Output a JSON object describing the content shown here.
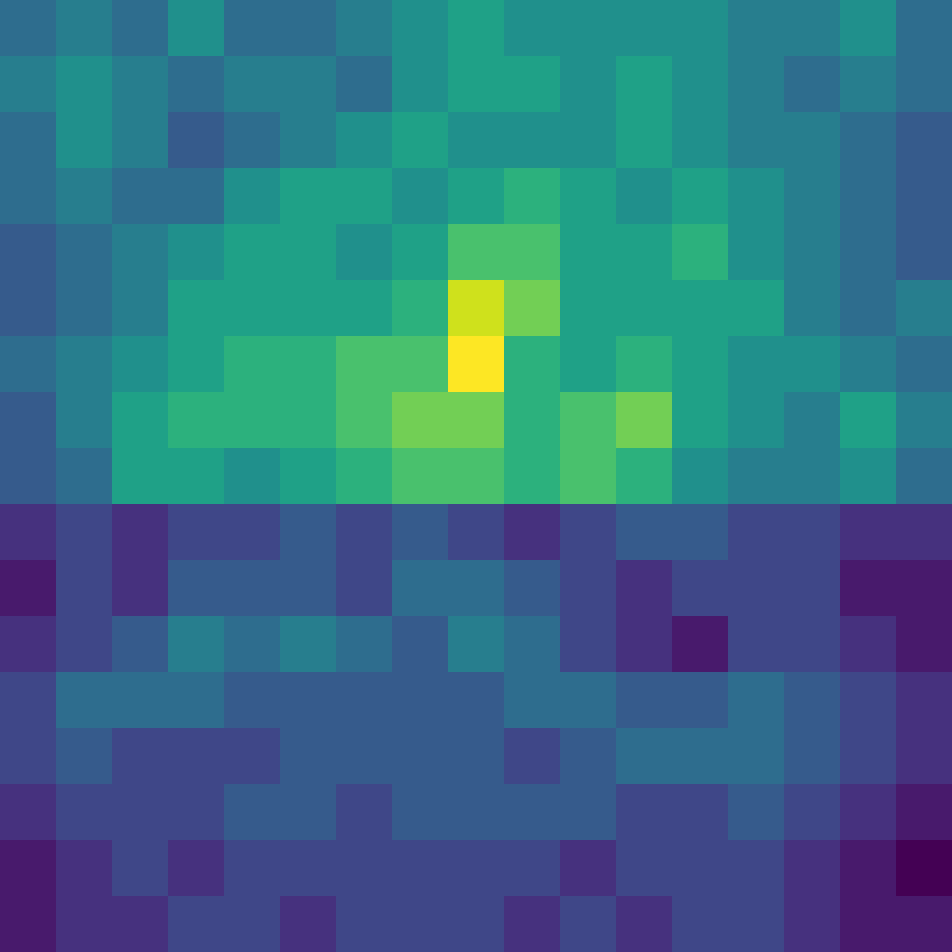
{
  "chart_data": {
    "type": "heatmap",
    "color": "viridis",
    "tick_labels": false,
    "cells": [
      [
        40,
        45,
        40,
        50,
        40,
        40,
        45,
        50,
        55,
        50,
        50,
        50,
        50,
        45,
        45,
        50,
        40
      ],
      [
        45,
        50,
        45,
        40,
        45,
        45,
        40,
        50,
        55,
        55,
        50,
        55,
        50,
        45,
        40,
        45,
        40
      ],
      [
        40,
        50,
        45,
        35,
        40,
        45,
        50,
        55,
        50,
        50,
        50,
        55,
        50,
        45,
        45,
        40,
        35
      ],
      [
        40,
        45,
        40,
        40,
        50,
        55,
        55,
        50,
        55,
        60,
        55,
        50,
        55,
        50,
        45,
        40,
        35
      ],
      [
        35,
        40,
        45,
        50,
        55,
        55,
        50,
        55,
        65,
        65,
        55,
        55,
        60,
        50,
        45,
        40,
        35
      ],
      [
        35,
        40,
        45,
        55,
        55,
        55,
        55,
        60,
        80,
        70,
        55,
        55,
        55,
        55,
        45,
        40,
        45
      ],
      [
        40,
        45,
        50,
        55,
        60,
        60,
        65,
        65,
        85,
        60,
        55,
        60,
        55,
        50,
        50,
        45,
        40
      ],
      [
        35,
        45,
        55,
        60,
        60,
        60,
        65,
        70,
        70,
        60,
        65,
        70,
        55,
        50,
        45,
        55,
        45
      ],
      [
        35,
        40,
        55,
        55,
        50,
        55,
        60,
        65,
        65,
        60,
        65,
        60,
        50,
        45,
        45,
        50,
        40
      ],
      [
        25,
        30,
        25,
        30,
        30,
        35,
        30,
        35,
        30,
        25,
        30,
        35,
        35,
        30,
        30,
        25,
        25
      ],
      [
        20,
        30,
        25,
        35,
        35,
        35,
        30,
        40,
        40,
        35,
        30,
        25,
        30,
        30,
        30,
        20,
        20
      ],
      [
        25,
        30,
        35,
        45,
        40,
        45,
        40,
        35,
        45,
        40,
        30,
        25,
        20,
        30,
        30,
        25,
        20
      ],
      [
        30,
        40,
        40,
        40,
        35,
        35,
        35,
        35,
        35,
        40,
        40,
        35,
        35,
        40,
        35,
        30,
        25
      ],
      [
        30,
        35,
        30,
        30,
        30,
        35,
        35,
        35,
        35,
        30,
        35,
        40,
        40,
        40,
        35,
        30,
        25
      ],
      [
        25,
        30,
        30,
        30,
        35,
        35,
        30,
        35,
        35,
        35,
        35,
        30,
        30,
        35,
        30,
        25,
        20
      ],
      [
        20,
        25,
        30,
        25,
        30,
        30,
        30,
        30,
        30,
        30,
        25,
        30,
        30,
        30,
        25,
        20,
        15
      ],
      [
        20,
        25,
        25,
        30,
        30,
        25,
        30,
        30,
        30,
        25,
        30,
        25,
        30,
        30,
        25,
        20,
        20
      ]
    ]
  }
}
